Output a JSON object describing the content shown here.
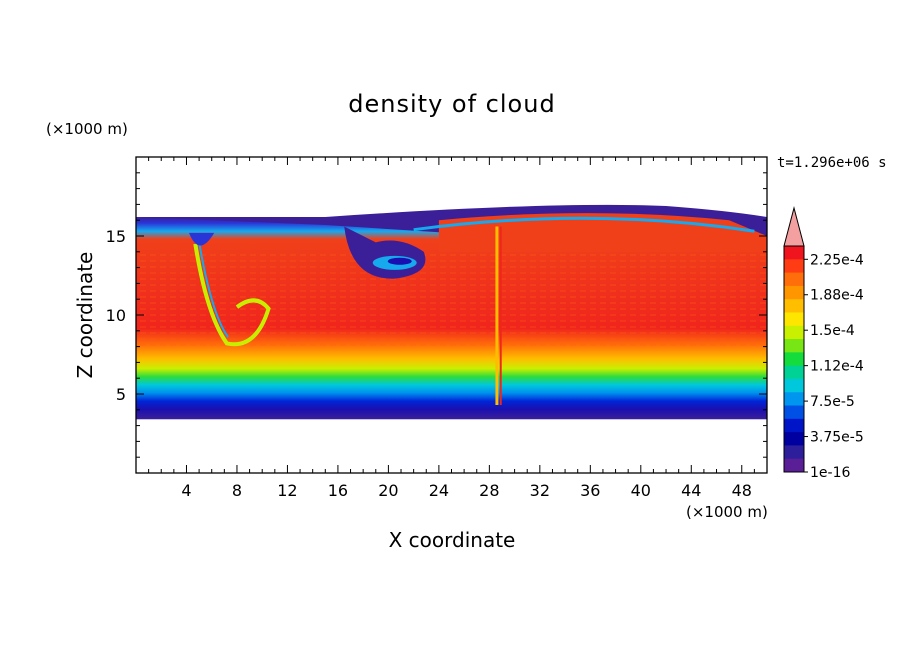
{
  "chart_data": {
    "type": "heatmap",
    "title": "density of cloud",
    "xlabel": "X coordinate",
    "ylabel": "Z coordinate",
    "x_unit": "(×1000 m)",
    "z_unit": "(×1000 m)",
    "time_label": "t=1.296e+06 s",
    "xlim": [
      0,
      50
    ],
    "ylim": [
      0,
      20
    ],
    "x_ticks": [
      "4",
      "8",
      "12",
      "16",
      "20",
      "24",
      "28",
      "32",
      "36",
      "40",
      "44",
      "48"
    ],
    "y_ticks": [
      "5",
      "10",
      "15"
    ],
    "colorbar_labels": [
      "2.25e-4",
      "1.88e-4",
      "1.5e-4",
      "1.12e-4",
      "7.5e-5",
      "3.75e-5",
      "1e-16"
    ],
    "colorbar_colors": [
      "#f0141e",
      "#ff3c14",
      "#ff6e0a",
      "#ff9600",
      "#ffbe00",
      "#ffe600",
      "#c8f000",
      "#78e614",
      "#14dc3c",
      "#00d296",
      "#00c8dc",
      "#0096f0",
      "#0050e6",
      "#0014c8",
      "#0000a0",
      "#2d1e9b",
      "#5a1e96"
    ],
    "over_color": "#f4a0a0",
    "features": {
      "cloud_base_z": 3.4,
      "cloud_top_z": 16.2,
      "core_z_range": [
        8.0,
        14.0
      ],
      "vortex_center": [
        20.5,
        13.3
      ],
      "narrow_column_x": 28.6
    }
  }
}
